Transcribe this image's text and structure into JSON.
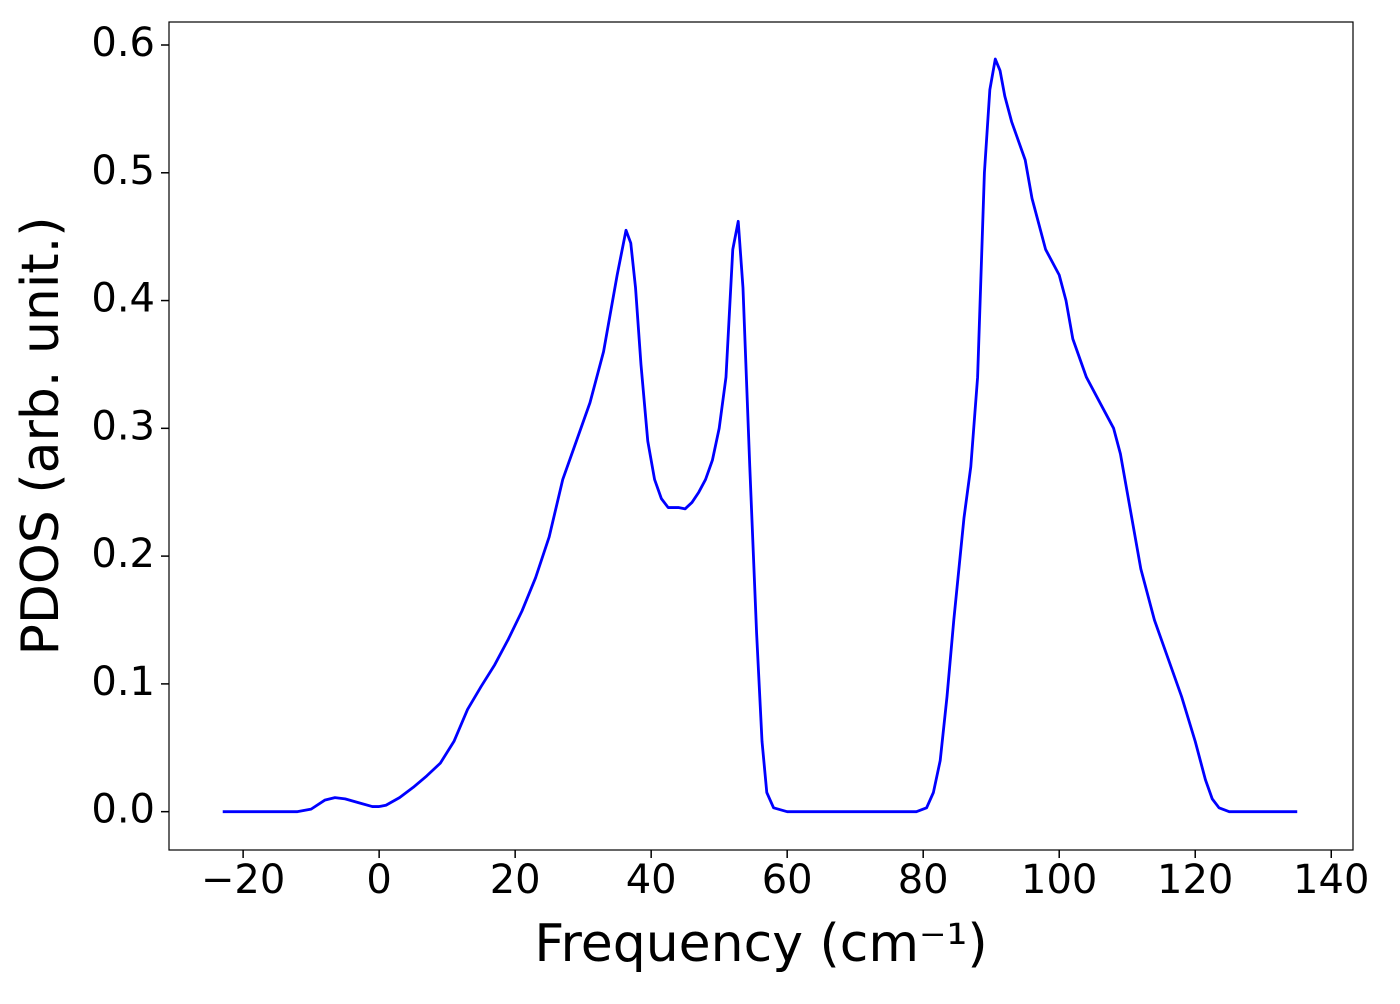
{
  "chart_data": {
    "type": "line",
    "xlabel": "Frequency (cm⁻¹)",
    "ylabel": "PDOS (arb. unit.)",
    "x": [
      -23,
      -12,
      -10,
      -8,
      -6.5,
      -5,
      -3,
      -1,
      0,
      1,
      3,
      5,
      7,
      9,
      11,
      13,
      15,
      17,
      19,
      21,
      23,
      25,
      27,
      29,
      31,
      33,
      35,
      36.3,
      37,
      37.7,
      38.5,
      39.5,
      40.5,
      41.5,
      42.5,
      44,
      45,
      46,
      47,
      48,
      49,
      50,
      51,
      52,
      52.8,
      53.5,
      54.5,
      55.5,
      56.3,
      57,
      58,
      60,
      79,
      80.5,
      81.5,
      82.5,
      83.5,
      84.5,
      86,
      87,
      88,
      89,
      89.8,
      90.6,
      91.3,
      92,
      93,
      95,
      96,
      97,
      98,
      100,
      101,
      102,
      104,
      106,
      108,
      109,
      110,
      112,
      114,
      116,
      118,
      120,
      121.5,
      122.5,
      123.5,
      125,
      135
    ],
    "series": [
      {
        "name": "PDOS",
        "color": "#0000ff",
        "values": [
          0,
          0,
          0.002,
          0.009,
          0.011,
          0.01,
          0.007,
          0.004,
          0.004,
          0.005,
          0.011,
          0.019,
          0.028,
          0.038,
          0.055,
          0.08,
          0.098,
          0.115,
          0.135,
          0.157,
          0.183,
          0.215,
          0.26,
          0.29,
          0.32,
          0.36,
          0.42,
          0.455,
          0.445,
          0.41,
          0.35,
          0.29,
          0.26,
          0.245,
          0.238,
          0.238,
          0.237,
          0.242,
          0.25,
          0.26,
          0.275,
          0.3,
          0.34,
          0.44,
          0.462,
          0.41,
          0.27,
          0.14,
          0.055,
          0.015,
          0.003,
          0,
          0,
          0.003,
          0.015,
          0.04,
          0.09,
          0.15,
          0.23,
          0.27,
          0.34,
          0.5,
          0.565,
          0.589,
          0.58,
          0.56,
          0.54,
          0.51,
          0.48,
          0.46,
          0.44,
          0.42,
          0.4,
          0.37,
          0.34,
          0.32,
          0.3,
          0.28,
          0.25,
          0.19,
          0.15,
          0.12,
          0.09,
          0.055,
          0.025,
          0.01,
          0.003,
          0,
          0
        ]
      }
    ],
    "xlim": [
      -30.9,
      143.2
    ],
    "ylim": [
      -0.03,
      0.618
    ],
    "xticks": [
      {
        "value": -20,
        "label": "−20"
      },
      0,
      20,
      40,
      60,
      80,
      100,
      120,
      140
    ],
    "yticks": [
      {
        "value": 0,
        "label": "0.0"
      },
      0.1,
      0.2,
      0.3,
      0.4,
      0.5,
      0.6
    ]
  }
}
